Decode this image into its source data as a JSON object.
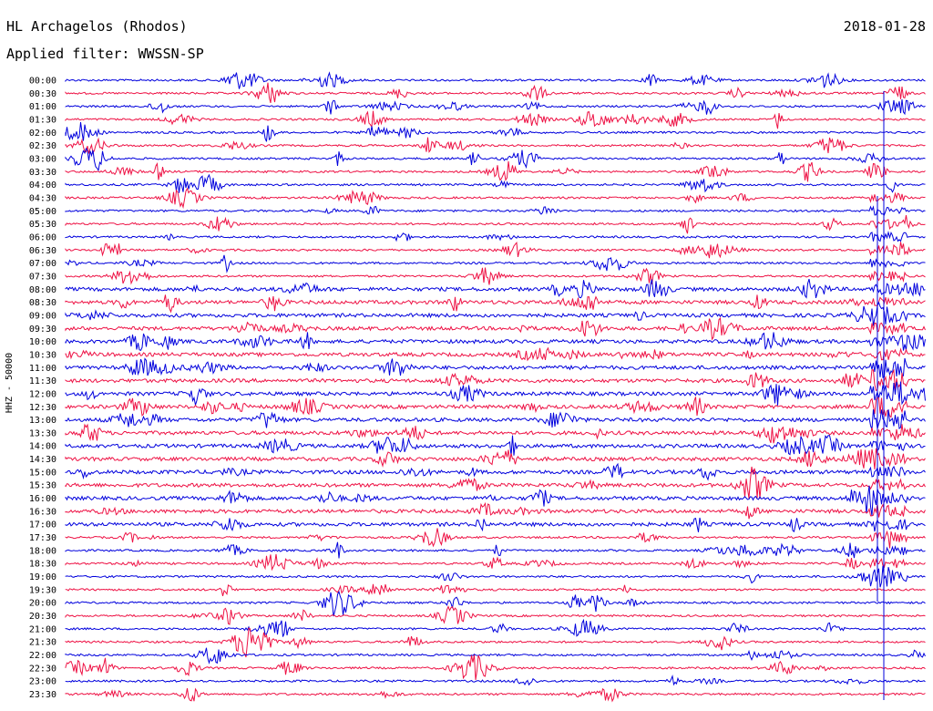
{
  "header": {
    "station": "HL Archagelos (Rhodos)",
    "date": "2018-01-28",
    "filter": "Applied filter: WWSSN-SP"
  },
  "chart_data": {
    "type": "line",
    "title": "HL Archagelos (Rhodos)",
    "ylabel": "HHZ - 50000",
    "xlabel": "",
    "row_labels": [
      "00:00",
      "00:30",
      "01:00",
      "01:30",
      "02:00",
      "02:30",
      "03:00",
      "03:30",
      "04:00",
      "04:30",
      "05:00",
      "05:30",
      "06:00",
      "06:30",
      "07:00",
      "07:30",
      "08:00",
      "08:30",
      "09:00",
      "09:30",
      "10:00",
      "10:30",
      "11:00",
      "11:30",
      "12:00",
      "12:30",
      "13:00",
      "13:30",
      "14:00",
      "14:30",
      "15:00",
      "15:30",
      "16:00",
      "16:30",
      "17:00",
      "17:30",
      "18:00",
      "18:30",
      "19:00",
      "19:30",
      "20:00",
      "20:30",
      "21:00",
      "21:30",
      "22:00",
      "22:30",
      "23:00",
      "23:30"
    ],
    "series_colors": [
      "#0000dd",
      "#ee1144"
    ],
    "grid": false,
    "legend": "none"
  }
}
